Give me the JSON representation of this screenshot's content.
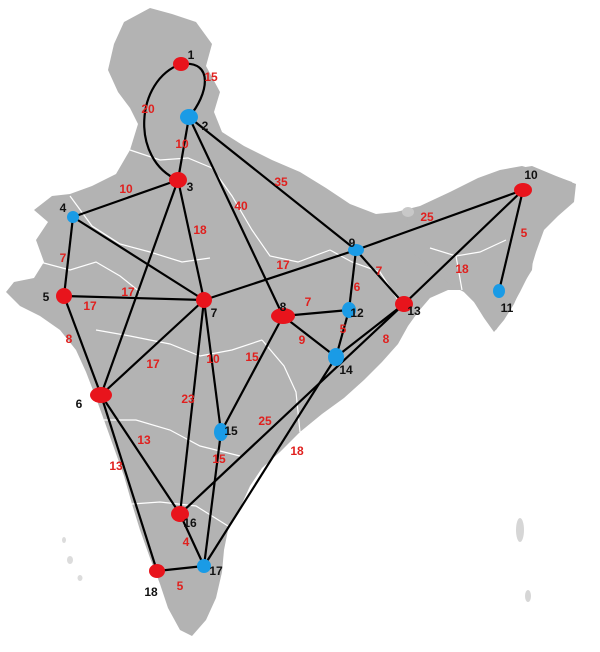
{
  "colors": {
    "map_fill": "#b3b3b3",
    "edge": "#000000",
    "weight_text": "#e0201e",
    "node_red": "#e8141c",
    "node_blue": "#1a9be6"
  },
  "nodes": [
    {
      "id": 1,
      "label": "1",
      "color": "red"
    },
    {
      "id": 2,
      "label": "2",
      "color": "blue"
    },
    {
      "id": 3,
      "label": "3",
      "color": "red"
    },
    {
      "id": 4,
      "label": "4",
      "color": "blue"
    },
    {
      "id": 5,
      "label": "5",
      "color": "red"
    },
    {
      "id": 6,
      "label": "6",
      "color": "red"
    },
    {
      "id": 7,
      "label": "7",
      "color": "red"
    },
    {
      "id": 8,
      "label": "8",
      "color": "red"
    },
    {
      "id": 9,
      "label": "9",
      "color": "blue"
    },
    {
      "id": 10,
      "label": "10",
      "color": "red"
    },
    {
      "id": 11,
      "label": "11",
      "color": "blue"
    },
    {
      "id": 12,
      "label": "12",
      "color": "blue"
    },
    {
      "id": 13,
      "label": "13",
      "color": "red"
    },
    {
      "id": 14,
      "label": "14",
      "color": "blue"
    },
    {
      "id": 15,
      "label": "15",
      "color": "blue"
    },
    {
      "id": 16,
      "label": "16",
      "color": "red"
    },
    {
      "id": 17,
      "label": "17",
      "color": "blue"
    },
    {
      "id": 18,
      "label": "18",
      "color": "red"
    }
  ],
  "edges": [
    {
      "from": 1,
      "to": 2,
      "weight": "15"
    },
    {
      "from": 1,
      "to": 3,
      "weight": "20"
    },
    {
      "from": 2,
      "to": 3,
      "weight": "10"
    },
    {
      "from": 2,
      "to": 8,
      "weight": "40"
    },
    {
      "from": 2,
      "to": 9,
      "weight": "35"
    },
    {
      "from": 3,
      "to": 4,
      "weight": "10"
    },
    {
      "from": 3,
      "to": 7,
      "weight": "18"
    },
    {
      "from": 3,
      "to": 6,
      "weight": "17"
    },
    {
      "from": 4,
      "to": 5,
      "weight": "7"
    },
    {
      "from": 4,
      "to": 7,
      "weight": ""
    },
    {
      "from": 5,
      "to": 7,
      "weight": "17"
    },
    {
      "from": 5,
      "to": 6,
      "weight": "8"
    },
    {
      "from": 6,
      "to": 7,
      "weight": "17"
    },
    {
      "from": 6,
      "to": 16,
      "weight": "13"
    },
    {
      "from": 6,
      "to": 18,
      "weight": "13"
    },
    {
      "from": 7,
      "to": 9,
      "weight": "17"
    },
    {
      "from": 7,
      "to": 15,
      "weight": "10"
    },
    {
      "from": 7,
      "to": 16,
      "weight": "23"
    },
    {
      "from": 8,
      "to": 12,
      "weight": "7"
    },
    {
      "from": 8,
      "to": 14,
      "weight": "9"
    },
    {
      "from": 8,
      "to": 15,
      "weight": "15"
    },
    {
      "from": 9,
      "to": 12,
      "weight": "6"
    },
    {
      "from": 9,
      "to": 13,
      "weight": "7"
    },
    {
      "from": 9,
      "to": 10,
      "weight": "25"
    },
    {
      "from": 10,
      "to": 13,
      "weight": "18"
    },
    {
      "from": 10,
      "to": 11,
      "weight": "5"
    },
    {
      "from": 12,
      "to": 14,
      "weight": "5"
    },
    {
      "from": 13,
      "to": 14,
      "weight": "8"
    },
    {
      "from": 13,
      "to": 16,
      "weight": "25"
    },
    {
      "from": 14,
      "to": 17,
      "weight": "18"
    },
    {
      "from": 15,
      "to": 17,
      "weight": "15"
    },
    {
      "from": 16,
      "to": 17,
      "weight": "4"
    },
    {
      "from": 17,
      "to": 18,
      "weight": "5"
    }
  ]
}
